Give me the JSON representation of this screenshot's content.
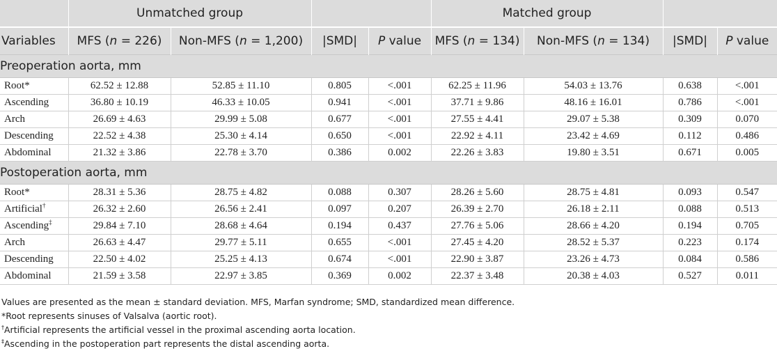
{
  "header": {
    "unmatched_group": "Unmatched group",
    "matched_group": "Matched group",
    "columns": {
      "variables": "Variables",
      "mfs_unmatched_pre": "MFS (",
      "mfs_unmatched_n": "n",
      "mfs_unmatched_post": " = 226)",
      "non_mfs_unmatched_pre": "Non-MFS (",
      "non_mfs_unmatched_n": "n",
      "non_mfs_unmatched_post": " = 1,200)",
      "smd": "|SMD|",
      "p_italic": "P",
      "p_rest": " value",
      "mfs_matched_pre": "MFS (",
      "mfs_matched_n": "n",
      "mfs_matched_post": " = 134)",
      "non_mfs_matched_pre": "Non-MFS (",
      "non_mfs_matched_n": "n",
      "non_mfs_matched_post": " = 134)"
    }
  },
  "sections": [
    {
      "title": "Preoperation aorta, mm",
      "rows": [
        {
          "label": "Root",
          "mark": "*",
          "c1": "62.52 ± 12.88",
          "c2": "52.85 ± 11.10",
          "c3": "0.805",
          "c4": "<.001",
          "c5": "62.25 ± 11.96",
          "c6": "54.03 ± 13.76",
          "c7": "0.638",
          "c8": "<.001"
        },
        {
          "label": "Ascending",
          "mark": "",
          "c1": "36.80 ± 10.19",
          "c2": "46.33 ± 10.05",
          "c3": "0.941",
          "c4": "<.001",
          "c5": "37.71 ± 9.86",
          "c6": "48.16 ± 16.01",
          "c7": "0.786",
          "c8": "<.001"
        },
        {
          "label": "Arch",
          "mark": "",
          "c1": "26.69 ± 4.63",
          "c2": "29.99 ± 5.08",
          "c3": "0.677",
          "c4": "<.001",
          "c5": "27.55 ± 4.41",
          "c6": "29.07 ± 5.38",
          "c7": "0.309",
          "c8": "0.070"
        },
        {
          "label": "Descending",
          "mark": "",
          "c1": "22.52 ± 4.38",
          "c2": "25.30 ± 4.14",
          "c3": "0.650",
          "c4": "<.001",
          "c5": "22.92 ± 4.11",
          "c6": "23.42 ± 4.69",
          "c7": "0.112",
          "c8": "0.486"
        },
        {
          "label": "Abdominal",
          "mark": "",
          "c1": "21.32 ± 3.86",
          "c2": "22.78 ± 3.70",
          "c3": "0.386",
          "c4": "0.002",
          "c5": "22.26 ± 3.83",
          "c6": "19.80 ± 3.51",
          "c7": "0.671",
          "c8": "0.005"
        }
      ]
    },
    {
      "title": "Postoperation aorta, mm",
      "rows": [
        {
          "label": "Root",
          "mark": "*",
          "c1": "28.31 ± 5.36",
          "c2": "28.75 ± 4.82",
          "c3": "0.088",
          "c4": "0.307",
          "c5": "28.26 ± 5.60",
          "c6": "28.75 ± 4.81",
          "c7": "0.093",
          "c8": "0.547"
        },
        {
          "label": "Artificial",
          "mark": "†",
          "c1": "26.32 ± 2.60",
          "c2": "26.56 ± 2.41",
          "c3": "0.097",
          "c4": "0.207",
          "c5": "26.39 ± 2.70",
          "c6": "26.18 ± 2.11",
          "c7": "0.088",
          "c8": "0.513"
        },
        {
          "label": "Ascending",
          "mark": "‡",
          "c1": "29.84 ± 7.10",
          "c2": "28.68 ± 4.64",
          "c3": "0.194",
          "c4": "0.437",
          "c5": "27.76 ± 5.06",
          "c6": "28.66 ± 4.20",
          "c7": "0.194",
          "c8": "0.705"
        },
        {
          "label": "Arch",
          "mark": "",
          "c1": "26.63 ± 4.47",
          "c2": "29.77 ± 5.11",
          "c3": "0.655",
          "c4": "<.001",
          "c5": "27.45 ± 4.20",
          "c6": "28.52 ± 5.37",
          "c7": "0.223",
          "c8": "0.174"
        },
        {
          "label": "Descending",
          "mark": "",
          "c1": "22.50 ± 4.02",
          "c2": "25.25 ± 4.13",
          "c3": "0.674",
          "c4": "<.001",
          "c5": "22.90 ± 3.87",
          "c6": "23.26 ± 4.73",
          "c7": "0.084",
          "c8": "0.586"
        },
        {
          "label": "Abdominal",
          "mark": "",
          "c1": "21.59 ± 3.58",
          "c2": "22.97 ± 3.85",
          "c3": "0.369",
          "c4": "0.002",
          "c5": "22.37 ± 3.48",
          "c6": "20.38 ± 4.03",
          "c7": "0.527",
          "c8": "0.011"
        }
      ]
    }
  ],
  "footnotes": {
    "note1": "Values are presented as the mean ± standard deviation. MFS, Marfan syndrome; SMD, standardized mean difference.",
    "note2": "*Root represents sinuses of Valsalva (aortic root).",
    "note3_mark": "†",
    "note3": "Artificial represents the artificial vessel in the proximal ascending aorta location.",
    "note4_mark": "‡",
    "note4": "Ascending in the postoperation part represents the distal ascending aorta."
  },
  "colors": {
    "header_bg": "#dcdcdc",
    "rule": "#cfcfcf",
    "text": "#222222"
  }
}
